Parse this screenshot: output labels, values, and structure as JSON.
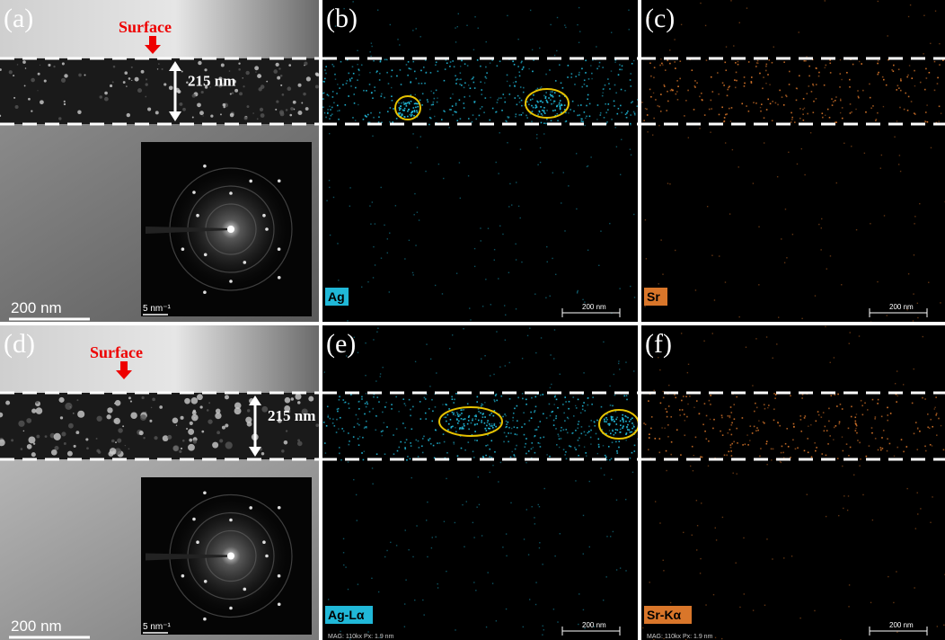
{
  "panels": [
    {
      "label": "(a)",
      "surface": "Surface",
      "thickness": "215 nm",
      "scale_bar": "200 nm",
      "inset_scale": "5 nm⁻¹"
    },
    {
      "label": "(b)",
      "element": "Ag",
      "scale_bar": "200 nm"
    },
    {
      "label": "(c)",
      "element": "Sr",
      "scale_bar": "200 nm"
    },
    {
      "label": "(d)",
      "surface": "Surface",
      "thickness": "215 nm",
      "scale_bar": "200 nm",
      "inset_scale": "5 nm⁻¹"
    },
    {
      "label": "(e)",
      "element": "Ag-Lα",
      "scale_bar": "200 nm",
      "info": "MAG: 110kx    Px: 1.9 nm"
    },
    {
      "label": "(f)",
      "element": "Sr-Kα",
      "scale_bar": "200 nm",
      "info": "MAG: 110kx    Px: 1.9 nm"
    }
  ]
}
